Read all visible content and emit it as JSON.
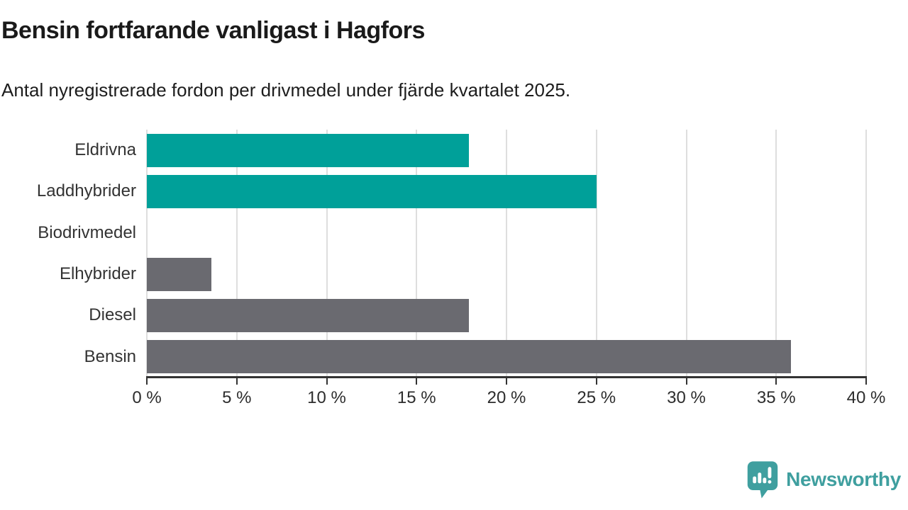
{
  "chart_data": {
    "type": "bar",
    "orientation": "horizontal",
    "title": "Bensin fortfarande vanligast i Hagfors",
    "subtitle": "Antal nyregistrerade fordon per drivmedel under fjärde kvartalet 2025.",
    "categories": [
      "Eldrivna",
      "Laddhybrider",
      "Biodrivmedel",
      "Elhybrider",
      "Diesel",
      "Bensin"
    ],
    "values": [
      17.9,
      25,
      0,
      3.6,
      17.9,
      35.8
    ],
    "unit": "%",
    "xlim": [
      0,
      40
    ],
    "x_ticks": [
      0,
      5,
      10,
      15,
      20,
      25,
      30,
      35,
      40
    ],
    "x_tick_labels": [
      "0 %",
      "5 %",
      "10 %",
      "15 %",
      "20 %",
      "25 %",
      "30 %",
      "35 %",
      "40 %"
    ],
    "bar_colors": [
      "#00a099",
      "#00a099",
      "#6a6a70",
      "#6a6a70",
      "#6a6a70",
      "#6a6a70"
    ],
    "grid": true,
    "legend": false,
    "accent_color": "#00a099",
    "neutral_color": "#6a6a70"
  },
  "styles": {
    "background": "#ffffff",
    "grid_color": "#dedede",
    "axis_color": "#333333",
    "title_color": "#1a1a1a",
    "label_color": "#333333"
  },
  "branding": {
    "logo_text": "Newsworthy",
    "logo_color": "#3f9f9f",
    "logo_icon": "bar-chart-speech-bubble-icon"
  }
}
